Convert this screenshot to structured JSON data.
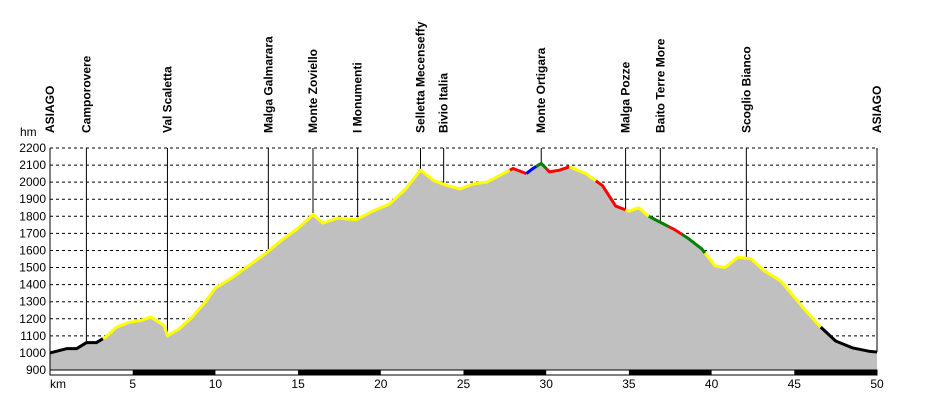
{
  "chart_data": {
    "type": "area",
    "y_unit": "hm",
    "x_unit": "km",
    "xlim": [
      0,
      50
    ],
    "ylim": [
      900,
      2200
    ],
    "y_ticks": [
      900,
      1000,
      1100,
      1200,
      1300,
      1400,
      1500,
      1600,
      1700,
      1800,
      1900,
      2000,
      2100,
      2200
    ],
    "x_ticks": [
      5,
      10,
      15,
      20,
      25,
      30,
      35,
      40,
      45,
      50
    ],
    "grid": "horizontal-dashed",
    "fill_color": "#c0c0c0",
    "profile": [
      [
        0,
        1000
      ],
      [
        1,
        1025
      ],
      [
        1.6,
        1025
      ],
      [
        2.2,
        1060
      ],
      [
        2.8,
        1060
      ],
      [
        3.4,
        1095
      ],
      [
        4,
        1150
      ],
      [
        4.8,
        1180
      ],
      [
        5.5,
        1190
      ],
      [
        6.1,
        1210
      ],
      [
        6.9,
        1160
      ],
      [
        7.1,
        1100
      ],
      [
        7.8,
        1140
      ],
      [
        8.6,
        1210
      ],
      [
        9.4,
        1300
      ],
      [
        10,
        1380
      ],
      [
        11,
        1440
      ],
      [
        12,
        1510
      ],
      [
        13,
        1580
      ],
      [
        14,
        1660
      ],
      [
        15,
        1730
      ],
      [
        15.9,
        1810
      ],
      [
        16.5,
        1760
      ],
      [
        17.4,
        1790
      ],
      [
        18.5,
        1780
      ],
      [
        19.5,
        1830
      ],
      [
        20.5,
        1870
      ],
      [
        21.5,
        1960
      ],
      [
        22.4,
        2070
      ],
      [
        23.2,
        2010
      ],
      [
        24,
        1980
      ],
      [
        24.8,
        1960
      ],
      [
        25.6,
        1990
      ],
      [
        26.4,
        2000
      ],
      [
        27.2,
        2040
      ],
      [
        28,
        2080
      ],
      [
        28.8,
        2050
      ],
      [
        29.2,
        2080
      ],
      [
        29.7,
        2110
      ],
      [
        30.2,
        2060
      ],
      [
        30.8,
        2070
      ],
      [
        31.4,
        2090
      ],
      [
        32.4,
        2050
      ],
      [
        33.4,
        1980
      ],
      [
        34.2,
        1860
      ],
      [
        35,
        1830
      ],
      [
        35.6,
        1850
      ],
      [
        36.2,
        1800
      ],
      [
        37,
        1760
      ],
      [
        37.8,
        1720
      ],
      [
        38.6,
        1670
      ],
      [
        39.4,
        1610
      ],
      [
        40.2,
        1510
      ],
      [
        40.8,
        1500
      ],
      [
        41.6,
        1560
      ],
      [
        42.4,
        1550
      ],
      [
        43.2,
        1480
      ],
      [
        44.2,
        1420
      ],
      [
        45.4,
        1280
      ],
      [
        46.5,
        1160
      ],
      [
        47.5,
        1070
      ],
      [
        48.5,
        1030
      ],
      [
        49.5,
        1010
      ],
      [
        50,
        1005
      ]
    ],
    "segments": [
      {
        "from": 0,
        "to": 3.2,
        "color": "#000000"
      },
      {
        "from": 3.2,
        "to": 27.8,
        "color": "#ffff00"
      },
      {
        "from": 27.8,
        "to": 28.8,
        "color": "#ff0000"
      },
      {
        "from": 28.8,
        "to": 29.4,
        "color": "#0000ff"
      },
      {
        "from": 29.4,
        "to": 30,
        "color": "#008000"
      },
      {
        "from": 30,
        "to": 31.4,
        "color": "#ff0000"
      },
      {
        "from": 31.4,
        "to": 33,
        "color": "#ffff00"
      },
      {
        "from": 33,
        "to": 34.8,
        "color": "#ff0000"
      },
      {
        "from": 34.8,
        "to": 36.2,
        "color": "#ffff00"
      },
      {
        "from": 36.2,
        "to": 37.4,
        "color": "#008000"
      },
      {
        "from": 37.4,
        "to": 38.2,
        "color": "#ff0000"
      },
      {
        "from": 38.2,
        "to": 39.6,
        "color": "#008000"
      },
      {
        "from": 39.6,
        "to": 46.6,
        "color": "#ffff00"
      },
      {
        "from": 46.6,
        "to": 50,
        "color": "#000000"
      }
    ],
    "waypoints": [
      {
        "label": "ASIAGO",
        "km": 0
      },
      {
        "label": "Camporovere",
        "km": 2.2
      },
      {
        "label": "Val Scaletta",
        "km": 7.1
      },
      {
        "label": "Malga Galmarara",
        "km": 13.2
      },
      {
        "label": "Monte Zoviello",
        "km": 15.9
      },
      {
        "label": "I Monumenti",
        "km": 18.6
      },
      {
        "label": "Selletta Mecenseffy",
        "km": 22.4
      },
      {
        "label": "Bivio Italia",
        "km": 23.8
      },
      {
        "label": "Monte Ortigara",
        "km": 29.7
      },
      {
        "label": "Malga Pozze",
        "km": 34.8
      },
      {
        "label": "Baito Terre More",
        "km": 36.9
      },
      {
        "label": "Scoglio Bianco",
        "km": 42.1
      },
      {
        "label": "ASIAGO",
        "km": 50
      }
    ],
    "km_bands": [
      [
        5,
        10
      ],
      [
        15,
        20
      ],
      [
        25,
        30
      ],
      [
        35,
        40
      ],
      [
        45,
        50
      ]
    ]
  }
}
